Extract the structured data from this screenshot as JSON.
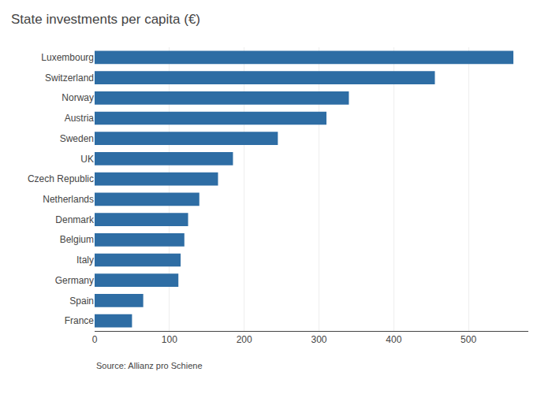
{
  "chart_data": {
    "type": "bar",
    "orientation": "horizontal",
    "title": "State investments per capita (€)",
    "source": "Source: Allianz pro Schiene",
    "categories": [
      "Luxembourg",
      "Switzerland",
      "Norway",
      "Austria",
      "Sweden",
      "UK",
      "Czech Republic",
      "Netherlands",
      "Denmark",
      "Belgium",
      "Italy",
      "Germany",
      "Spain",
      "France"
    ],
    "values": [
      560,
      455,
      340,
      310,
      245,
      185,
      165,
      140,
      125,
      120,
      115,
      112,
      65,
      50
    ],
    "color": "#2e6da4",
    "xlim": [
      0,
      580
    ],
    "xticks": [
      0,
      100,
      200,
      300,
      400,
      500
    ],
    "grid": true
  }
}
